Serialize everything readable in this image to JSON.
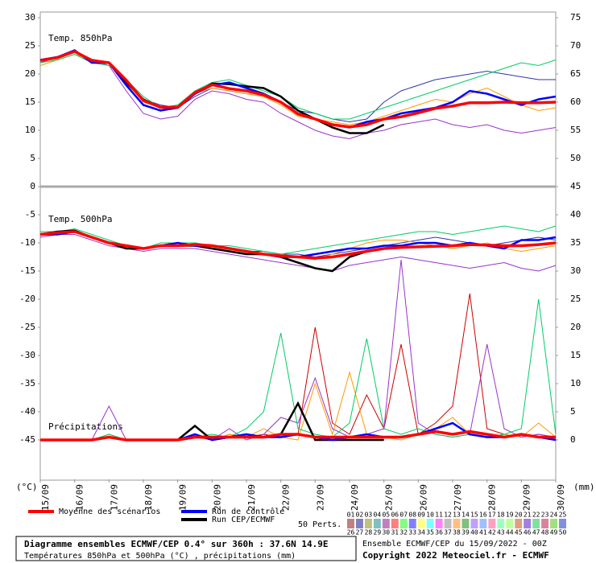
{
  "chart_data": [
    {
      "type": "line",
      "label": "Temp. 850hPa",
      "axis_unit": "(°C)",
      "xlim": [
        0,
        15
      ],
      "xticks": [
        {
          "value": 0,
          "label": "15/09"
        },
        {
          "value": 1,
          "label": "16/09"
        },
        {
          "value": 2,
          "label": "17/09"
        },
        {
          "value": 3,
          "label": "18/09"
        },
        {
          "value": 4,
          "label": "19/09"
        },
        {
          "value": 5,
          "label": "20/09"
        },
        {
          "value": 6,
          "label": "21/09"
        },
        {
          "value": 7,
          "label": "22/09"
        },
        {
          "value": 8,
          "label": "23/09"
        },
        {
          "value": 9,
          "label": "24/09"
        },
        {
          "value": 10,
          "label": "25/09"
        },
        {
          "value": 11,
          "label": "26/09"
        },
        {
          "value": 12,
          "label": "27/09"
        },
        {
          "value": 13,
          "label": "28/09"
        },
        {
          "value": 14,
          "label": "29/09"
        },
        {
          "value": 15,
          "label": "30/09"
        }
      ],
      "ylim": [
        -52,
        31
      ],
      "yticks": [
        30,
        25,
        20,
        15,
        10,
        5,
        0,
        -5,
        -10,
        -15,
        -20,
        -25,
        -30,
        -35,
        -40,
        -45
      ],
      "x": [
        0,
        0.5,
        1,
        1.5,
        2,
        2.5,
        3,
        3.5,
        4,
        4.5,
        5,
        5.5,
        6,
        6.5,
        7,
        7.5,
        8,
        8.5,
        9,
        9.5,
        10,
        10.5,
        11,
        11.5,
        12,
        12.5,
        13,
        13.5,
        14,
        14.5,
        15
      ],
      "series": [
        {
          "name": "Moyenne des scénarios",
          "color": "#ff0000",
          "values": [
            22.4,
            22.9,
            24,
            22.4,
            22,
            18.9,
            15.3,
            14.1,
            14.1,
            16.7,
            18.1,
            17.4,
            17,
            16.3,
            15,
            12.9,
            12,
            11,
            10.6,
            11,
            12,
            12.4,
            13.1,
            13.9,
            14.3,
            14.9,
            14.9,
            15,
            14.9,
            14.9,
            15
          ]
        },
        {
          "name": "Run de contrôle",
          "color": "#0000ff",
          "values": [
            22.5,
            23,
            24.2,
            22,
            22,
            18,
            14.5,
            13.5,
            14,
            16.5,
            18,
            18.5,
            17.5,
            16.5,
            15,
            13,
            12,
            11,
            10.5,
            11.5,
            12,
            13,
            13.5,
            14,
            15,
            17,
            16.5,
            15.5,
            14.5,
            15.5,
            16
          ]
        },
        {
          "name": "Run CEP/ECMWF",
          "color": "#000000",
          "values": [
            22.4,
            23,
            24,
            22.5,
            22,
            18.5,
            15.5,
            14,
            14,
            16.5,
            18.3,
            18.2,
            17.8,
            17.5,
            16,
            13.5,
            12,
            10.5,
            9.5,
            9.5,
            11,
            null,
            null,
            null,
            null,
            null,
            null,
            null,
            null,
            null,
            null
          ]
        },
        {
          "color": "#00cc66",
          "values": [
            22,
            22.5,
            23.5,
            22,
            21.5,
            19,
            16,
            14,
            14.5,
            17,
            18.5,
            19,
            18,
            17,
            16,
            14,
            13,
            12,
            12,
            13,
            14,
            15,
            16,
            17,
            18,
            19,
            20,
            21,
            22,
            21.5,
            22.5
          ]
        },
        {
          "color": "#9933cc",
          "values": [
            22,
            23,
            24,
            22.5,
            21.5,
            17,
            13,
            12,
            12.5,
            15.5,
            17,
            16.5,
            15.5,
            15,
            13,
            11.5,
            10,
            9,
            8.5,
            9.5,
            10,
            11,
            11.5,
            12,
            11,
            10.5,
            11,
            10,
            9.5,
            10,
            10.5
          ]
        },
        {
          "color": "#ff9900",
          "values": [
            21.5,
            22.5,
            23.5,
            22.5,
            22,
            18.5,
            15,
            14,
            14.5,
            16.5,
            17.5,
            17,
            16.5,
            16,
            14.5,
            12.5,
            12,
            11.5,
            11,
            11.5,
            12.5,
            13.5,
            14.5,
            15.5,
            15,
            16.5,
            17.5,
            16,
            14.5,
            13.5,
            14
          ]
        },
        {
          "color": "#3333aa",
          "values": [
            22.5,
            23,
            24,
            22,
            22,
            19,
            15.5,
            14.5,
            14,
            16,
            17.5,
            17,
            16.5,
            16,
            15,
            13.5,
            13,
            12,
            11.5,
            12,
            15,
            17,
            18,
            19,
            19.5,
            20,
            20.5,
            20,
            19.5,
            19,
            19
          ]
        }
      ]
    },
    {
      "type": "line",
      "label": "Temp. 500hPa",
      "xlim": [
        0,
        15
      ],
      "ylim": [
        -52,
        31
      ],
      "x": [
        0,
        0.5,
        1,
        1.5,
        2,
        2.5,
        3,
        3.5,
        4,
        4.5,
        5,
        5.5,
        6,
        6.5,
        7,
        7.5,
        8,
        8.5,
        9,
        9.5,
        10,
        10.5,
        11,
        11.5,
        12,
        12.5,
        13,
        13.5,
        14,
        14.5,
        15
      ],
      "series": [
        {
          "color": "#ff0000",
          "values": [
            -8.5,
            -8.2,
            -8,
            -9,
            -10,
            -10.5,
            -11,
            -10.5,
            -10.5,
            -10.3,
            -10.5,
            -11,
            -11.5,
            -12,
            -12.3,
            -12.5,
            -12.7,
            -12.5,
            -12,
            -11.5,
            -11,
            -10.8,
            -10.7,
            -10.6,
            -10.5,
            -10.3,
            -10.4,
            -10.5,
            -10.5,
            -10.3,
            -10
          ]
        },
        {
          "color": "#0000ff",
          "values": [
            -8.5,
            -8.5,
            -8,
            -9,
            -10,
            -10.5,
            -11,
            -10.5,
            -10,
            -10.5,
            -10.5,
            -11,
            -11.5,
            -12,
            -12.5,
            -12.5,
            -12,
            -11.5,
            -11,
            -11,
            -10.5,
            -10.5,
            -10,
            -10,
            -10.5,
            -10,
            -10.5,
            -11,
            -9.5,
            -9.5,
            -9
          ]
        },
        {
          "color": "#000000",
          "values": [
            -8.5,
            -8,
            -7.8,
            -9,
            -10,
            -11,
            -11,
            -10.5,
            -10.5,
            -10.5,
            -11,
            -11.5,
            -12,
            -12,
            -12.5,
            -13.5,
            -14.5,
            -15,
            -12.5,
            -11.5,
            -11,
            null,
            null,
            null,
            null,
            null,
            null,
            null,
            null,
            null,
            null
          ]
        },
        {
          "color": "#00cc66",
          "values": [
            -8,
            -8,
            -7.5,
            -8.5,
            -9.5,
            -10.5,
            -11,
            -10,
            -10,
            -10,
            -10.5,
            -10.5,
            -11,
            -11.5,
            -12,
            -11.5,
            -11,
            -10.5,
            -10,
            -9.5,
            -9,
            -8.5,
            -8,
            -8,
            -8.5,
            -8,
            -7.5,
            -7,
            -7.5,
            -8,
            -7
          ]
        },
        {
          "color": "#9933cc",
          "values": [
            -9,
            -8.5,
            -8.5,
            -9.5,
            -10.5,
            -11,
            -11.5,
            -11,
            -11,
            -11,
            -11.5,
            -12,
            -12.5,
            -13,
            -13.5,
            -14,
            -14.5,
            -15,
            -14,
            -13.5,
            -13,
            -12.5,
            -13,
            -13.5,
            -14,
            -14.5,
            -14,
            -13.5,
            -14.5,
            -15,
            -14
          ]
        },
        {
          "color": "#ff9900",
          "values": [
            -8.5,
            -8,
            -8,
            -9,
            -10,
            -10.5,
            -11,
            -10.5,
            -10.5,
            -10.5,
            -10.5,
            -11,
            -11.5,
            -12,
            -12,
            -12.5,
            -13,
            -12,
            -11,
            -10,
            -9.5,
            -9.5,
            -10,
            -10.5,
            -11,
            -10.5,
            -10,
            -11,
            -11.5,
            -11,
            -10.5
          ]
        },
        {
          "color": "#3333aa",
          "values": [
            -8.5,
            -8.5,
            -8,
            -9,
            -10,
            -10.5,
            -11,
            -10.5,
            -10,
            -10,
            -10.5,
            -11,
            -11.5,
            -11.5,
            -12,
            -12,
            -12.5,
            -12,
            -11.5,
            -11,
            -10.5,
            -10,
            -9.5,
            -9,
            -9.5,
            -10,
            -10.5,
            -10,
            -9.5,
            -9,
            -9.5
          ]
        }
      ]
    },
    {
      "type": "line",
      "label": "Précipitations",
      "axis_unit": "(mm)",
      "xlim": [
        0,
        15
      ],
      "y2lim": [
        -7,
        76
      ],
      "y2ticks": [
        75,
        70,
        65,
        60,
        55,
        50,
        45,
        40,
        35,
        30,
        25,
        20,
        15,
        10,
        5,
        0
      ],
      "x": [
        0,
        0.5,
        1,
        1.5,
        2,
        2.5,
        3,
        3.5,
        4,
        4.5,
        5,
        5.5,
        6,
        6.5,
        7,
        7.5,
        8,
        8.5,
        9,
        9.5,
        10,
        10.5,
        11,
        11.5,
        12,
        12.5,
        13,
        13.5,
        14,
        14.5,
        15
      ],
      "series": [
        {
          "axis": "y2",
          "color": "#ff0000",
          "values": [
            0,
            0,
            0,
            0,
            0.5,
            0,
            0,
            0,
            0,
            0.5,
            0.5,
            0.5,
            0.5,
            0.5,
            1,
            1,
            0.5,
            0.5,
            0.5,
            0.5,
            0.5,
            0.5,
            1,
            1.5,
            1,
            1.5,
            1,
            0.5,
            1,
            0.5,
            0.5
          ]
        },
        {
          "axis": "y2",
          "color": "#0000ff",
          "values": [
            0,
            0,
            0,
            0,
            0.5,
            0,
            0,
            0,
            0,
            1,
            0,
            0.5,
            1,
            0.5,
            0.5,
            1,
            0.5,
            0,
            0.5,
            1,
            0.5,
            0.5,
            1,
            2,
            3,
            1,
            0.5,
            0.5,
            1,
            0.5,
            0
          ]
        },
        {
          "axis": "y2",
          "color": "#000000",
          "values": [
            0,
            0,
            0,
            0,
            0.5,
            0,
            0,
            0,
            0,
            2.5,
            0,
            0.5,
            1,
            0.5,
            1,
            6.5,
            0,
            0,
            0,
            0,
            0,
            null,
            null,
            null,
            null,
            null,
            null,
            null,
            null,
            null,
            null
          ]
        },
        {
          "axis": "y2",
          "color": "#00cc66",
          "values": [
            0,
            0,
            0,
            0,
            1,
            0,
            0,
            0,
            0,
            0.5,
            1,
            0.5,
            2,
            5,
            19,
            2,
            1,
            0.5,
            3,
            18,
            2,
            1,
            2,
            1,
            0.5,
            1,
            0.5,
            1,
            2,
            25,
            1
          ]
        },
        {
          "axis": "y2",
          "color": "#9933cc",
          "values": [
            0,
            0,
            0,
            0,
            6,
            0,
            0,
            0,
            0,
            1,
            0,
            2,
            0,
            1,
            4,
            3,
            11,
            2,
            0.5,
            1,
            2,
            32,
            3,
            1,
            0.5,
            1,
            17,
            2,
            0.5,
            1,
            0.5
          ]
        },
        {
          "axis": "y2",
          "color": "#ff9900",
          "values": [
            0,
            0,
            0,
            0,
            0.5,
            0,
            0,
            0,
            0,
            0.5,
            0,
            1,
            0.5,
            2,
            0.5,
            0,
            10,
            1,
            12,
            1,
            0.5,
            0,
            1,
            2,
            4,
            1,
            0.5,
            1,
            0.5,
            3,
            0.5
          ]
        },
        {
          "axis": "y2",
          "color": "#cc0000",
          "values": [
            0,
            0,
            0,
            0,
            1,
            0,
            0,
            0,
            0,
            0.5,
            0,
            1,
            0.5,
            1,
            0.5,
            1,
            20,
            3,
            1,
            8,
            2,
            17,
            1,
            3,
            6,
            26,
            2,
            1,
            0.5,
            1,
            0.5
          ]
        }
      ]
    }
  ],
  "legend": {
    "perts_label": "50 Perts.",
    "pert_numbers": [
      "01",
      "02",
      "03",
      "04",
      "05",
      "06",
      "07",
      "08",
      "09",
      "10",
      "11",
      "12",
      "13",
      "14",
      "15",
      "16",
      "17",
      "18",
      "19",
      "20",
      "21",
      "22",
      "23",
      "24",
      "25",
      "26",
      "27",
      "28",
      "29",
      "30",
      "31",
      "32",
      "33",
      "34",
      "35",
      "36",
      "37",
      "38",
      "39",
      "40",
      "41",
      "42",
      "43",
      "44",
      "45",
      "46",
      "47",
      "48",
      "49",
      "50"
    ],
    "pert_colors": [
      "#c08080",
      "#8080c0",
      "#c0c080",
      "#80c0c0",
      "#c080c0",
      "#ff8080",
      "#80ff80",
      "#8080ff",
      "#ffff80",
      "#80ffff",
      "#ff80ff",
      "#c0c0c0",
      "#ffc080",
      "#80c080",
      "#c0a0ff",
      "#a0c0ff",
      "#ffa0c0",
      "#a0ffc0",
      "#c0ffa0",
      "#e0a080",
      "#a080e0",
      "#80e0a0",
      "#e080a0",
      "#a0e080",
      "#8090e0"
    ]
  },
  "footer": {
    "title": "Diagramme ensembles ECMWF/CEP 0.4° sur 360h : 37.6N 14.9E",
    "subtitle": "Températures 850hPa et 500hPa (°C) , précipitations (mm)",
    "run": "Ensemble ECMWF/CEP du 15/09/2022 - 00Z",
    "copyright": "Copyright 2022 Meteociel.fr - ECMWF"
  }
}
